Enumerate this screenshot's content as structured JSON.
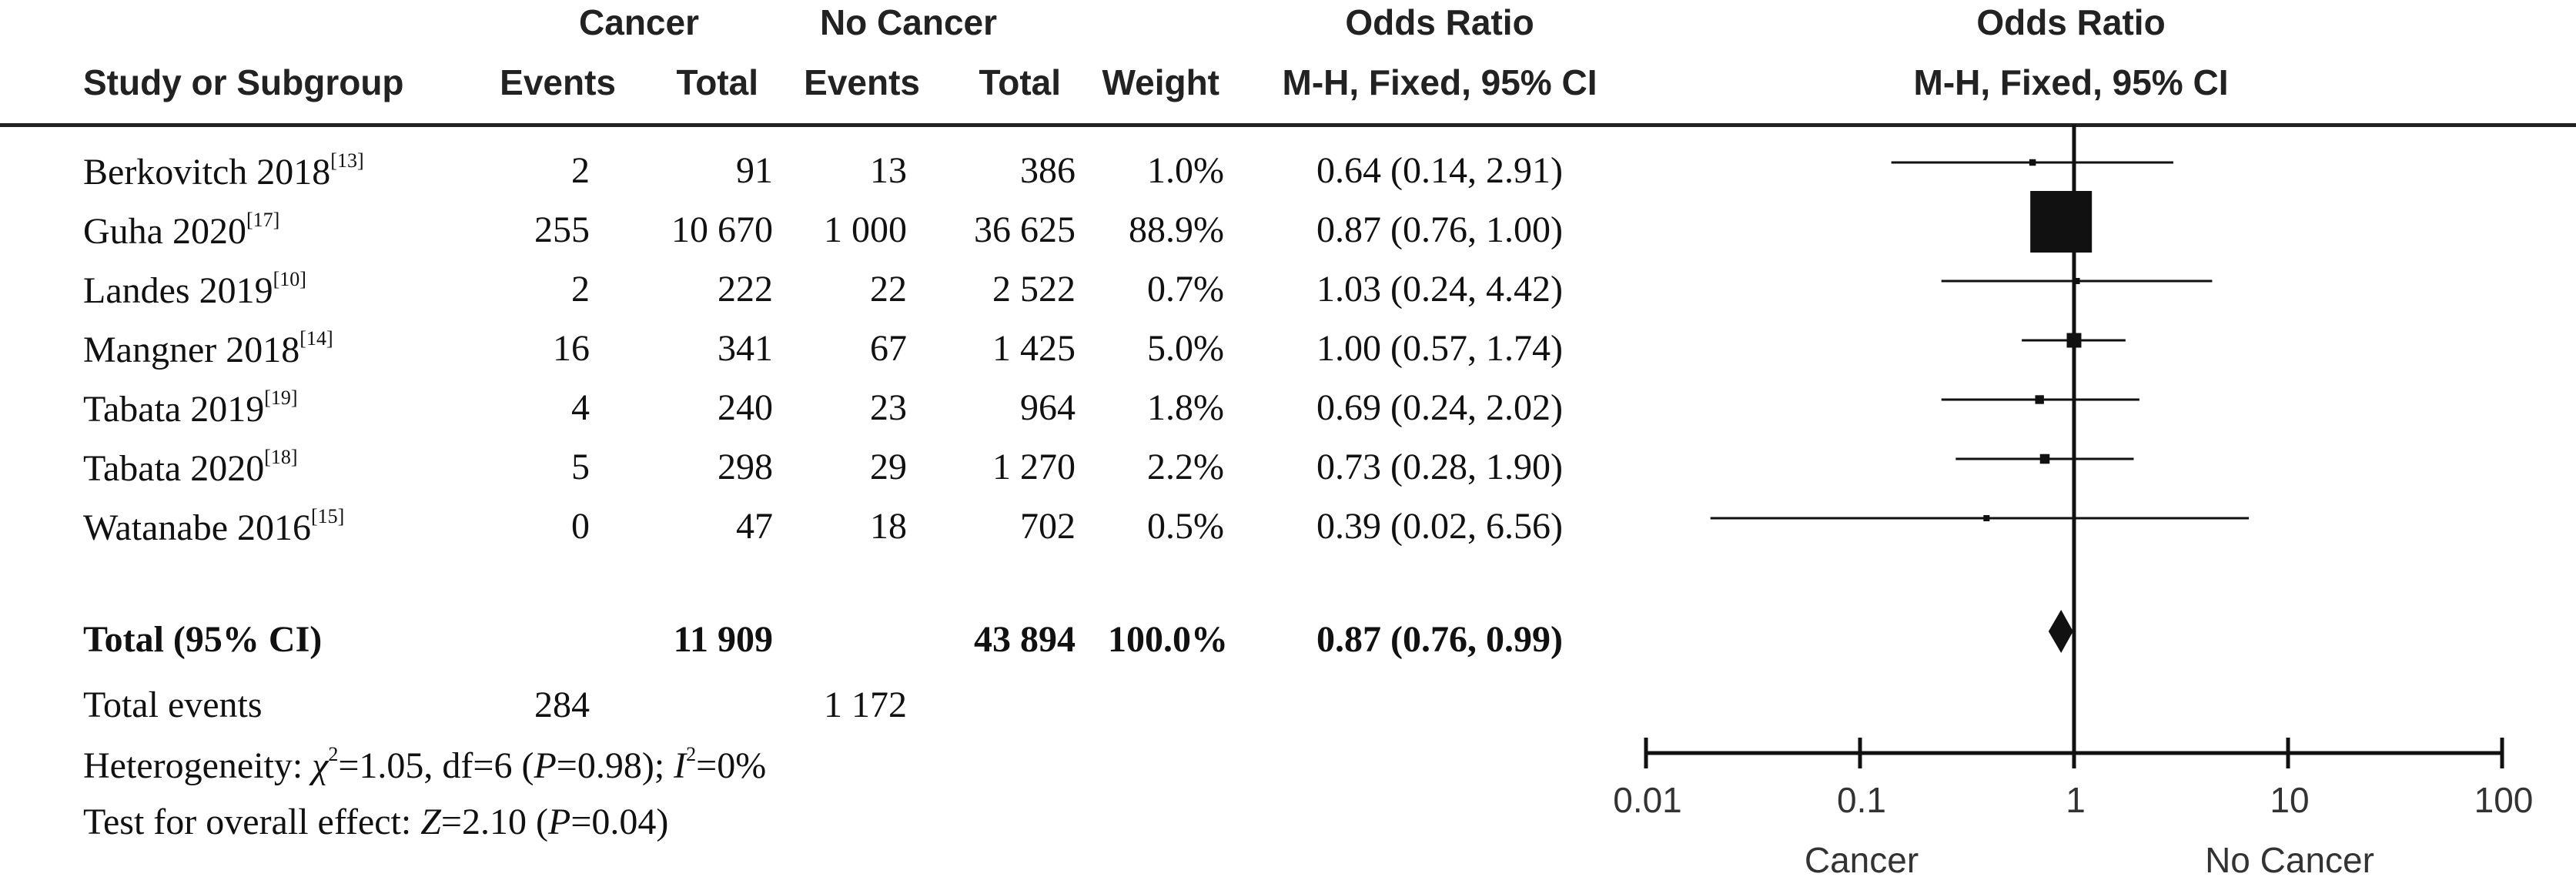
{
  "header": {
    "group1": "Cancer",
    "group2": "No Cancer",
    "or_top": "Odds Ratio",
    "or_sub": "M-H, Fixed, 95% CI",
    "plot_top": "Odds Ratio",
    "plot_sub": "M-H, Fixed, 95% CI",
    "study": "Study or Subgroup",
    "events1": "Events",
    "total1": "Total",
    "events2": "Events",
    "total2": "Total",
    "weight": "Weight"
  },
  "rows": [
    {
      "study": "Berkovitch 2018",
      "ref": "[13]",
      "e1": "2",
      "t1": "91",
      "e2": "13",
      "t2": "386",
      "weight": "1.0%",
      "or_text": "0.64 (0.14, 2.91)"
    },
    {
      "study": "Guha 2020",
      "ref": "[17]",
      "e1": "255",
      "t1": "10 670",
      "e2": "1 000",
      "t2": "36 625",
      "weight": "88.9%",
      "or_text": "0.87 (0.76, 1.00)"
    },
    {
      "study": "Landes 2019",
      "ref": "[10]",
      "e1": "2",
      "t1": "222",
      "e2": "22",
      "t2": "2 522",
      "weight": "0.7%",
      "or_text": "1.03 (0.24, 4.42)"
    },
    {
      "study": "Mangner 2018",
      "ref": "[14]",
      "e1": "16",
      "t1": "341",
      "e2": "67",
      "t2": "1 425",
      "weight": "5.0%",
      "or_text": "1.00 (0.57, 1.74)"
    },
    {
      "study": "Tabata 2019",
      "ref": "[19]",
      "e1": "4",
      "t1": "240",
      "e2": "23",
      "t2": "964",
      "weight": "1.8%",
      "or_text": "0.69 (0.24, 2.02)"
    },
    {
      "study": "Tabata 2020",
      "ref": "[18]",
      "e1": "5",
      "t1": "298",
      "e2": "29",
      "t2": "1 270",
      "weight": "2.2%",
      "or_text": "0.73 (0.28, 1.90)"
    },
    {
      "study": "Watanabe 2016",
      "ref": "[15]",
      "e1": "0",
      "t1": "47",
      "e2": "18",
      "t2": "702",
      "weight": "0.5%",
      "or_text": "0.39 (0.02, 6.56)"
    }
  ],
  "total": {
    "label": "Total (95% CI)",
    "t1": "11 909",
    "t2": "43 894",
    "weight": "100.0%",
    "or_text": "0.87 (0.76, 0.99)"
  },
  "events": {
    "label": "Total events",
    "e1": "284",
    "e2": "1 172"
  },
  "stats": {
    "het_prefix": "Heterogeneity: ",
    "chi": "χ",
    "chi_sup": "2",
    "het_mid": "=1.05, df=6 (",
    "p1": "P",
    "p1_val": "=0.98); ",
    "i": "I",
    "i_sup": "2",
    "i_val": "=0%",
    "test_prefix": "Test for overall effect: ",
    "z": "Z",
    "z_val": "=2.10 (",
    "p2": "P",
    "p2_val": "=0.04)"
  },
  "axis": {
    "ticks": [
      "0.01",
      "0.1",
      "1",
      "10",
      "100"
    ],
    "left_label": "Cancer",
    "right_label": "No Cancer"
  },
  "chart_data": {
    "type": "forest",
    "scale": "log",
    "xlim": [
      0.01,
      100
    ],
    "studies": [
      {
        "name": "Berkovitch 2018",
        "or": 0.64,
        "lo": 0.14,
        "hi": 2.91,
        "weight": 1.0
      },
      {
        "name": "Guha 2020",
        "or": 0.87,
        "lo": 0.76,
        "hi": 1.0,
        "weight": 88.9
      },
      {
        "name": "Landes 2019",
        "or": 1.03,
        "lo": 0.24,
        "hi": 4.42,
        "weight": 0.7
      },
      {
        "name": "Mangner 2018",
        "or": 1.0,
        "lo": 0.57,
        "hi": 1.74,
        "weight": 5.0
      },
      {
        "name": "Tabata 2019",
        "or": 0.69,
        "lo": 0.24,
        "hi": 2.02,
        "weight": 1.8
      },
      {
        "name": "Tabata 2020",
        "or": 0.73,
        "lo": 0.28,
        "hi": 1.9,
        "weight": 2.2
      },
      {
        "name": "Watanabe 2016",
        "or": 0.39,
        "lo": 0.02,
        "hi": 6.56,
        "weight": 0.5
      }
    ],
    "pooled": {
      "or": 0.87,
      "lo": 0.76,
      "hi": 0.99
    }
  }
}
